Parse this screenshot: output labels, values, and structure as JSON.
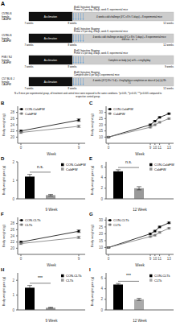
{
  "chart_data": [
    {
      "type": "schematic",
      "title": "A",
      "annotations": [
        [
          "C57BL/6",
          "female",
          "CAldFW",
          "BrdU Injection Staging",
          "Primer x 2 per day, 4 days, week 8, experimental mice",
          "Acclimation",
          "4 weeks cold challenge (4°C x 8 h / 5 days) + 8 experimental mice",
          "7 weeks",
          "8 weeks",
          "12 weeks"
        ],
        [
          "C57BL/6",
          "female",
          "CAldFW",
          "BrdU Injection Staging",
          "Primer x 2 per day, 4 days, week 8, experimental mice",
          "Acclimation",
          "4 weeks cold challenge on day (4°C x 8 h / 5 days) + 8 experimental mice and xxx - xx - x",
          "7 weeks",
          "8 weeks",
          "12 weeks"
        ],
        [
          "FVB / NJ",
          "female",
          "CAldFW",
          "BrdU Injection Staging",
          "Primer x 2 per day, 4 days, week 8, experimental mice",
          "Acclimation",
          "Complete on body (xx) xx% + x mg/kg/day",
          "7 weeks",
          "8 weeks",
          "9 weeks"
        ],
        [
          "C57 BL/6 J",
          "female",
          "CAldFW",
          "BrdU Injection Staging",
          "Complete after 4 per day 4 experimental mice",
          "Acclimation",
          "4 weeks (4°C) 8 h / 5 d) + 4 mg/kg/dose completion on dose of (xx) (x) 8h / 5",
          "7 weeks",
          "8 weeks",
          "12 weeks"
        ]
      ],
      "subtitle": "N = 8 mice per experimental group, all treatment and control mice were exposed to the same conditions. *p<0.05, **p<0.01, ***p<0.001 compared to respective control group.",
      "colors": [
        "#111111",
        "#cccccc",
        "#5b9bd5"
      ]
    },
    {
      "type": "line",
      "title": "B",
      "x_label": "Week",
      "y_label": "Body weight (g)",
      "x": [
        0,
        9
      ],
      "series": [
        {
          "name": "CON-CaldFW",
          "color": "black",
          "marker": "square",
          "values": [
            22.0,
            25.5
          ],
          "errors": [
            0.3,
            0.4
          ]
        },
        {
          "name": "CaldFW",
          "color": "#777777",
          "marker": "square",
          "values": [
            21.5,
            23.5
          ],
          "errors": [
            0.3,
            0.4
          ]
        }
      ],
      "xlim": [
        -0.5,
        10
      ],
      "xticks": [
        0,
        9
      ],
      "ylim": [
        18,
        30
      ],
      "yticks": [
        20,
        22,
        24,
        26,
        28
      ],
      "grid": false,
      "legend": "upper left"
    },
    {
      "type": "line",
      "title": "C",
      "x_label": "Week",
      "y_label": "Body weight (g)",
      "x": [
        0,
        9,
        10,
        11,
        13
      ],
      "series": [
        {
          "name": "CON-CaldFW",
          "color": "black",
          "marker": "square",
          "values": [
            10,
            20,
            23,
            26,
            29
          ],
          "errors": [
            0.3,
            0.5,
            0.5,
            0.5,
            0.5
          ]
        },
        {
          "name": "CaldFW",
          "color": "#777777",
          "marker": "square",
          "values": [
            10,
            18,
            20,
            22,
            25
          ],
          "errors": [
            0.3,
            0.5,
            0.5,
            0.5,
            0.5
          ]
        }
      ],
      "xlim": [
        -0.5,
        14
      ],
      "xticks": [
        0,
        9,
        10,
        11,
        13
      ],
      "ylim": [
        5,
        35
      ],
      "yticks": [
        10,
        15,
        20,
        25,
        30
      ],
      "grid": false,
      "legend": "upper left"
    },
    {
      "type": "bar",
      "title": "D",
      "x_label": "9 Week",
      "y_label": "Body weight gain (g)",
      "categories": [
        null,
        null
      ],
      "series": [
        {
          "name": "CON-CaldFW",
          "color": "black",
          "values": [
            1.2,
            null
          ],
          "errors": [
            0.12,
            null
          ]
        },
        {
          "name": "CaldFW",
          "color": "#999999",
          "values": [
            null,
            0.2
          ],
          "errors": [
            null,
            0.04
          ]
        }
      ],
      "annotations": [
        "n.s."
      ],
      "ylim": [
        0,
        2.0
      ],
      "yticks": [
        0,
        1,
        2
      ],
      "grid": false,
      "legend": "upper right",
      "tick_labels": "y"
    },
    {
      "type": "bar",
      "title": "E",
      "x_label": "12 Week",
      "y_label": "Body weight gain (g)",
      "categories": [
        null,
        null
      ],
      "series": [
        {
          "name": "CON-CaldFW",
          "color": "black",
          "values": [
            5.2,
            null
          ],
          "errors": [
            0.3,
            null
          ]
        },
        {
          "name": "CaldFW",
          "color": "#999999",
          "values": [
            null,
            2.0
          ],
          "errors": [
            null,
            0.3
          ]
        }
      ],
      "annotations": [
        "n.s."
      ],
      "ylim": [
        0,
        7.0
      ],
      "yticks": [
        0,
        2,
        4,
        6
      ],
      "grid": false,
      "legend": "upper right",
      "tick_labels": "y"
    },
    {
      "type": "line",
      "title": "F",
      "x_label": "Week",
      "y_label": "Body weight (g)",
      "x": [
        0,
        9
      ],
      "series": [
        {
          "name": "CON-CLTk",
          "color": "black",
          "marker": "square",
          "values": [
            22.0,
            25.5
          ],
          "errors": [
            0.3,
            0.4
          ]
        },
        {
          "name": "CLTk",
          "color": "#777777",
          "marker": "square",
          "values": [
            21.5,
            23.5
          ],
          "errors": [
            0.3,
            0.4
          ]
        }
      ],
      "xlim": [
        -0.5,
        10
      ],
      "xticks": [
        0,
        9
      ],
      "ylim": [
        18,
        30
      ],
      "yticks": [
        20,
        22,
        24,
        26,
        28
      ],
      "grid": false,
      "legend": "upper left"
    },
    {
      "type": "line",
      "title": "G",
      "x_label": "Week",
      "y_label": "Body weight (g)",
      "x": [
        0,
        9,
        10,
        11,
        13
      ],
      "series": [
        {
          "name": "CON-CLTk",
          "color": "black",
          "marker": "square",
          "values": [
            10,
            20,
            22,
            25,
            28
          ],
          "errors": [
            0.3,
            0.5,
            0.5,
            0.5,
            0.5
          ]
        },
        {
          "name": "CLTk",
          "color": "#777777",
          "marker": "square",
          "values": [
            10,
            18,
            19,
            21,
            24
          ],
          "errors": [
            0.3,
            0.5,
            0.5,
            0.5,
            0.5
          ]
        }
      ],
      "xlim": [
        -0.5,
        14
      ],
      "xticks": [
        0,
        9,
        10,
        11,
        13
      ],
      "ylim": [
        5,
        32
      ],
      "yticks": [
        10,
        15,
        20,
        25,
        30
      ],
      "grid": false,
      "legend": "upper left"
    },
    {
      "type": "bar",
      "title": "H",
      "x_label": "9 Week",
      "y_label": "Body weight gain (g)",
      "categories": [
        null,
        null
      ],
      "series": [
        {
          "name": "CON-CLTk",
          "color": "black",
          "values": [
            1.5,
            null
          ],
          "errors": [
            0.15,
            null
          ]
        },
        {
          "name": "CLTk",
          "color": "#999999",
          "values": [
            null,
            0.15
          ],
          "errors": [
            null,
            0.03
          ]
        }
      ],
      "annotations": [
        "***"
      ],
      "ylim": [
        0,
        2.5
      ],
      "yticks": [
        0,
        1,
        2
      ],
      "grid": false,
      "legend": "upper right",
      "tick_labels": "y"
    },
    {
      "type": "bar",
      "title": "I",
      "x_label": "12 Week",
      "y_label": "Body weight gain (g)",
      "categories": [
        null,
        null
      ],
      "series": [
        {
          "name": "CON-CLTk",
          "color": "black",
          "values": [
            4.8,
            null
          ],
          "errors": [
            0.2,
            null
          ]
        },
        {
          "name": "CLTk",
          "color": "#aaaaaa",
          "values": [
            null,
            2.0
          ],
          "errors": [
            null,
            0.2
          ]
        }
      ],
      "annotations": [
        "***"
      ],
      "ylim": [
        0,
        7.0
      ],
      "yticks": [
        0,
        2,
        4,
        6
      ],
      "grid": false,
      "legend": "upper right",
      "tick_labels": "y"
    }
  ]
}
